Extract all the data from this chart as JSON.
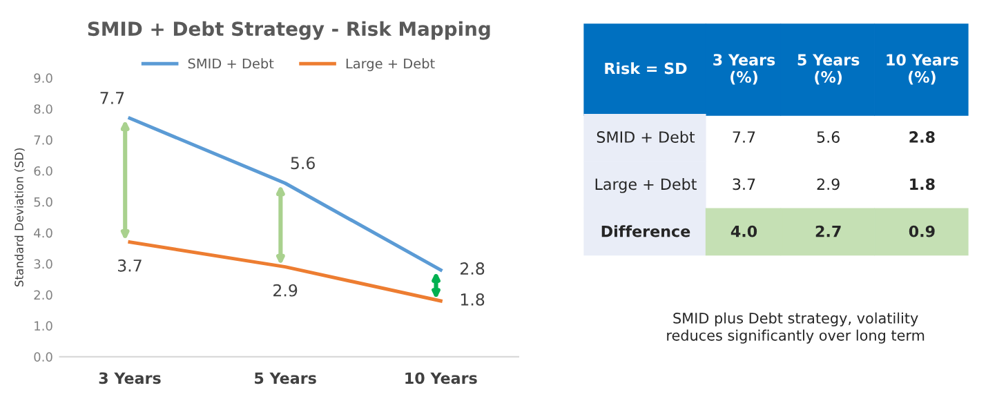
{
  "chart_data": [
    {
      "type": "line",
      "title": "SMID + Debt Strategy - Risk Mapping",
      "ylabel": "Standard Deviation (SD)",
      "categories": [
        "3 Years",
        "5 Years",
        "10 Years"
      ],
      "series": [
        {
          "name": "SMID + Debt",
          "color": "#5b9bd5",
          "values": [
            7.7,
            5.6,
            2.8
          ]
        },
        {
          "name": "Large + Debt",
          "color": "#ed7d31",
          "values": [
            3.7,
            2.9,
            1.8
          ]
        }
      ],
      "ylim": [
        0,
        9
      ],
      "yticks": [
        {
          "value": 0,
          "label": "0.0"
        },
        {
          "value": 1,
          "label": "1.0"
        },
        {
          "value": 2,
          "label": "2.0"
        },
        {
          "value": 3,
          "label": "3.0"
        },
        {
          "value": 4,
          "label": "4.0"
        },
        {
          "value": 5,
          "label": "5.0"
        },
        {
          "value": 6,
          "label": "6.0"
        },
        {
          "value": 7,
          "label": "7.0"
        },
        {
          "value": 8,
          "label": "8.0"
        },
        {
          "value": 9,
          "label": "9.0"
        }
      ],
      "data_labels": true,
      "legend": "top",
      "grid": false,
      "marker": "none",
      "line_style": "solid"
    },
    {
      "type": "other",
      "categories": [
        "Risk = SD",
        "3 Years\n(%)",
        "5 Years\n(%)",
        "10 Years\n(%)"
      ],
      "y_categories": [
        "SMID + Debt",
        "Large + Debt",
        "Difference"
      ],
      "cell_labels": [
        [
          "7.7",
          "5.6",
          "2.8"
        ],
        [
          "3.7",
          "2.9",
          "1.8"
        ],
        [
          "4.0",
          "2.7",
          "0.9"
        ]
      ],
      "annotations": [
        "SMID plus Debt strategy, volatility\nreduces significantly over long term"
      ]
    }
  ]
}
